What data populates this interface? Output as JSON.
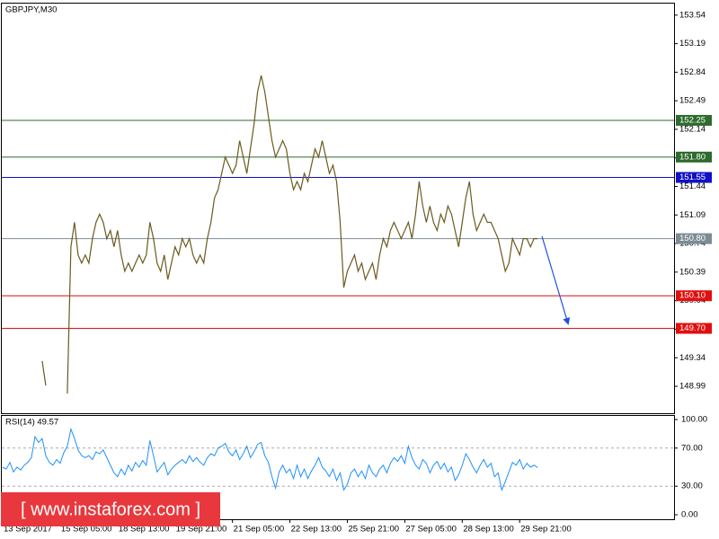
{
  "chart_data": {
    "type": "line",
    "title": "GBPJPY,M30",
    "x": [
      0,
      1,
      2,
      3,
      4,
      5,
      6,
      7,
      8,
      9,
      10,
      11,
      12,
      13,
      14,
      15,
      16,
      17,
      18,
      19,
      20,
      21,
      22,
      23,
      24,
      25,
      26,
      27,
      28,
      29,
      30,
      31,
      32,
      33,
      34,
      35,
      36,
      37,
      38,
      39,
      40,
      41,
      42,
      43,
      44,
      45,
      46,
      47,
      48,
      49,
      50,
      51,
      52,
      53,
      54,
      55,
      56,
      57,
      58,
      59,
      60,
      61,
      62,
      63,
      64,
      65,
      66,
      67,
      68,
      69,
      70,
      71,
      72,
      73,
      74,
      75,
      76,
      77,
      78,
      79,
      80,
      81,
      82,
      83,
      84,
      85,
      86,
      87,
      88,
      89,
      90,
      91,
      92,
      93,
      94,
      95,
      96,
      97,
      98,
      99,
      100,
      101,
      102,
      103,
      104,
      105,
      106,
      107,
      108,
      109,
      110,
      111,
      112,
      113,
      114,
      115,
      116,
      117,
      118,
      119,
      120,
      121,
      122,
      123,
      124,
      125,
      126,
      127,
      128,
      129,
      130,
      131,
      132,
      133,
      134,
      135,
      136,
      137,
      138,
      139,
      140,
      141,
      142,
      143,
      144,
      145,
      146,
      147,
      148,
      149
    ],
    "xlim": [
      0,
      187
    ],
    "xticks": [
      {
        "value": 0,
        "label": "13 Sep 2017"
      },
      {
        "value": 16,
        "label": "15 Sep 05:00"
      },
      {
        "value": 32,
        "label": "18 Sep 13:00"
      },
      {
        "value": 48,
        "label": "19 Sep 21:00"
      },
      {
        "value": 64,
        "label": "21 Sep 05:00"
      },
      {
        "value": 80,
        "label": "22 Sep 13:00"
      },
      {
        "value": 96,
        "label": "25 Sep 21:00"
      },
      {
        "value": 112,
        "label": "27 Sep 05:00"
      },
      {
        "value": 128,
        "label": "28 Sep 13:00"
      },
      {
        "value": 144,
        "label": "29 Sep 21:00"
      }
    ],
    "ylim": [
      148.66,
      153.67
    ],
    "yticks": [
      153.54,
      153.19,
      152.84,
      152.49,
      152.14,
      151.79,
      151.44,
      151.09,
      150.74,
      150.39,
      150.04,
      149.69,
      149.34,
      148.99
    ],
    "series": [
      {
        "color": "#6b5a1e",
        "values": [
          null,
          null,
          null,
          null,
          null,
          null,
          null,
          null,
          null,
          null,
          null,
          149.3,
          149.0,
          null,
          null,
          null,
          null,
          null,
          148.9,
          150.7,
          151.0,
          150.6,
          150.5,
          150.6,
          150.5,
          150.8,
          151.0,
          151.1,
          151.0,
          150.8,
          150.9,
          150.7,
          150.9,
          150.6,
          150.4,
          150.5,
          150.4,
          150.5,
          150.6,
          150.5,
          150.6,
          151.0,
          150.8,
          150.5,
          150.4,
          150.6,
          150.3,
          150.5,
          150.7,
          150.6,
          150.8,
          150.7,
          150.8,
          150.6,
          150.5,
          150.6,
          150.5,
          150.8,
          151.0,
          151.3,
          151.4,
          151.6,
          151.8,
          151.7,
          151.6,
          151.7,
          152.0,
          151.8,
          151.6,
          151.9,
          152.2,
          152.6,
          152.8,
          152.6,
          152.3,
          152.0,
          151.8,
          151.9,
          152.0,
          151.9,
          151.6,
          151.4,
          151.5,
          151.4,
          151.6,
          151.5,
          151.7,
          151.9,
          151.8,
          152.0,
          151.8,
          151.6,
          151.7,
          151.5,
          151.0,
          150.2,
          150.4,
          150.5,
          150.6,
          150.4,
          150.5,
          150.3,
          150.4,
          150.5,
          150.3,
          150.6,
          150.8,
          150.7,
          150.9,
          151.0,
          150.9,
          150.8,
          150.9,
          151.0,
          150.8,
          151.1,
          151.5,
          151.2,
          151.0,
          151.2,
          151.0,
          150.9,
          151.1,
          151.0,
          151.2,
          151.1,
          150.9,
          150.7,
          151.0,
          151.3,
          151.5,
          151.1,
          150.9,
          151.0,
          151.1,
          151.0,
          151.0,
          150.9,
          150.8,
          150.6,
          150.4,
          150.5,
          150.8,
          150.7,
          150.6,
          150.8,
          150.8,
          150.7,
          150.8,
          150.8
        ]
      }
    ],
    "levels": [
      {
        "value": 152.25,
        "label": "152.25",
        "color": "#2e6b2e"
      },
      {
        "value": 151.8,
        "label": "151.80",
        "color": "#2e6b2e"
      },
      {
        "value": 151.55,
        "label": "151.55",
        "color": "#1010c8"
      },
      {
        "value": 150.8,
        "label": "150.80",
        "color": "#7c8c94"
      },
      {
        "value": 150.1,
        "label": "150.10",
        "color": "#e01010"
      },
      {
        "value": 149.7,
        "label": "149.70",
        "color": "#e01010"
      }
    ],
    "rsi": {
      "label": "RSI(14) 49.57",
      "color": "#1e90ff",
      "ylim": [
        0,
        100
      ],
      "yticks": [
        {
          "value": 100,
          "label": "100.00"
        },
        {
          "value": 70,
          "label": "70.00"
        },
        {
          "value": 30,
          "label": "30.00"
        },
        {
          "value": 0,
          "label": "0.00"
        }
      ],
      "values": [
        50,
        48,
        55,
        45,
        50,
        47,
        52,
        55,
        60,
        82,
        76,
        80,
        62,
        55,
        52,
        58,
        54,
        65,
        72,
        90,
        80,
        68,
        62,
        60,
        62,
        58,
        66,
        64,
        68,
        60,
        52,
        44,
        40,
        48,
        42,
        52,
        46,
        55,
        50,
        57,
        52,
        78,
        62,
        45,
        50,
        55,
        42,
        48,
        52,
        55,
        58,
        54,
        62,
        56,
        60,
        55,
        52,
        60,
        64,
        62,
        70,
        72,
        75,
        66,
        62,
        68,
        58,
        64,
        72,
        60,
        66,
        74,
        76,
        62,
        55,
        40,
        28,
        45,
        52,
        44,
        48,
        38,
        52,
        40,
        48,
        38,
        46,
        52,
        60,
        50,
        46,
        40,
        48,
        36,
        44,
        26,
        32,
        44,
        48,
        40,
        46,
        38,
        52,
        44,
        40,
        48,
        52,
        44,
        54,
        60,
        56,
        62,
        54,
        72,
        60,
        52,
        48,
        58,
        54,
        44,
        52,
        56,
        48,
        54,
        45,
        50,
        36,
        42,
        52,
        64,
        58,
        50,
        44,
        52,
        58,
        50,
        54,
        40,
        44,
        26,
        35,
        45,
        55,
        52,
        58,
        48,
        54,
        50,
        52,
        49.57
      ]
    },
    "watermark": "[  www.instaforex.com ]"
  }
}
